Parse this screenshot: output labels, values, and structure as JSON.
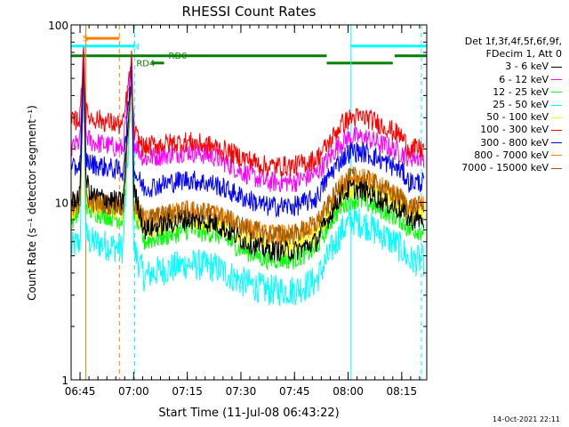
{
  "chart_data": {
    "type": "line",
    "title": "RHESSI Count Rates",
    "xlabel": "Start Time (11-Jul-08 06:43:22)",
    "ylabel": "Count Rate (s⁻¹ detector segment⁻¹)",
    "yscale": "log",
    "ylim": [
      1,
      100
    ],
    "xlim_minutes": [
      -2.5,
      97
    ],
    "x_ticks": [
      {
        "m": 0,
        "label": "06:45"
      },
      {
        "m": 15,
        "label": "07:00"
      },
      {
        "m": 30,
        "label": "07:15"
      },
      {
        "m": 45,
        "label": "07:30"
      },
      {
        "m": 60,
        "label": "07:45"
      },
      {
        "m": 75,
        "label": "08:00"
      },
      {
        "m": 90,
        "label": "08:15"
      }
    ],
    "y_ticks": [
      {
        "v": 1,
        "label": "1"
      },
      {
        "v": 10,
        "label": "10"
      },
      {
        "v": 100,
        "label": "100"
      }
    ],
    "time_minutes": [
      -2.5,
      0,
      1,
      1.6,
      3,
      12,
      14.5,
      15,
      18,
      20,
      30,
      38,
      45,
      52,
      60,
      66,
      70,
      73,
      76,
      80,
      85,
      90,
      92
    ],
    "series": [
      {
        "name": "3 - 6 keV",
        "color": "#000000",
        "values": [
          10,
          11,
          70,
          14,
          11,
          10,
          60,
          12,
          7,
          7.2,
          8,
          7.6,
          6.2,
          5.4,
          5.3,
          6,
          8.5,
          11,
          12,
          11.5,
          10,
          9,
          8
        ]
      },
      {
        "name": "6 - 12 keV",
        "color": "#ff00ff",
        "values": [
          20,
          22,
          72,
          24,
          22,
          20,
          62,
          22,
          17.5,
          18,
          19.5,
          18,
          15,
          13,
          13,
          14.5,
          18,
          22,
          23.5,
          23,
          21,
          19,
          18
        ]
      },
      {
        "name": "12 - 25 keV",
        "color": "#00ff00",
        "values": [
          8,
          9,
          60,
          10,
          9,
          8,
          50,
          9,
          6,
          6.2,
          7,
          6.7,
          5.5,
          4.8,
          4.8,
          5.5,
          7.8,
          9.5,
          10.5,
          10,
          9,
          8,
          7
        ]
      },
      {
        "name": "25 - 50 keV",
        "color": "#00ffff",
        "values": [
          5.5,
          6,
          50,
          6.5,
          6,
          5.5,
          45,
          5.5,
          3.8,
          4,
          4.5,
          4.3,
          3.6,
          3.2,
          3.2,
          3.6,
          5.2,
          6.8,
          8,
          7.5,
          6.5,
          5.5,
          4.7
        ]
      },
      {
        "name": "50 - 100 keV",
        "color": "#ffff00",
        "values": [
          8.5,
          9.5,
          62,
          10.5,
          9.5,
          9,
          52,
          9.5,
          7,
          7.2,
          8,
          7.6,
          6.4,
          5.7,
          5.7,
          6.5,
          8.6,
          11,
          12.2,
          11.8,
          10.6,
          9.5,
          8.5
        ]
      },
      {
        "name": "100 - 300 keV",
        "color": "#ff0000",
        "values": [
          28,
          30,
          75,
          32,
          30,
          27,
          65,
          25,
          20,
          21,
          22,
          20.5,
          18,
          16,
          16,
          17.5,
          22,
          27.5,
          30,
          30,
          27,
          23.5,
          20
        ]
      },
      {
        "name": "300 - 800 keV",
        "color": "#0000ff",
        "values": [
          15,
          16.5,
          70,
          17.5,
          16.5,
          15,
          58,
          15,
          12,
          12.3,
          13.5,
          12.6,
          10.8,
          9.5,
          9.5,
          10.5,
          14.5,
          17.5,
          19.5,
          19,
          17,
          15,
          13
        ]
      },
      {
        "name": "800 - 7000 keV",
        "color": "#ff8000",
        "values": [
          9,
          10,
          64,
          11,
          10,
          9.5,
          55,
          10,
          8,
          8.2,
          9,
          8.6,
          7.4,
          6.6,
          6.6,
          7.5,
          10,
          12.5,
          14,
          13.5,
          12,
          10.5,
          9.5
        ]
      },
      {
        "name": "7000 - 15000 keV",
        "color": "#a06000",
        "values": [
          9,
          10,
          60,
          11,
          10,
          9.5,
          52,
          10,
          8,
          8.2,
          9,
          8.6,
          7.4,
          6.6,
          6.6,
          7.5,
          10,
          12.5,
          14,
          13.5,
          12,
          10.5,
          9.5
        ]
      }
    ],
    "vertical_markers": [
      {
        "m": 1.6,
        "color": "#ff8000",
        "style": "solid"
      },
      {
        "m": 11,
        "color": "#ff8000",
        "style": "dashed"
      },
      {
        "m": 15.3,
        "color": "#00ffff",
        "style": "dashed"
      },
      {
        "m": 75.8,
        "color": "#00ffff",
        "style": "solid"
      },
      {
        "m": 95.5,
        "color": "#00ffff",
        "style": "dashed"
      }
    ],
    "flag_bars": [
      {
        "label": "S",
        "color": "#ff8000",
        "segments": [
          [
            1.6,
            11
          ]
        ],
        "y": 84,
        "label_at": 0
      },
      {
        "label": "N",
        "color": "#00ffff",
        "segments": [
          [
            -2.5,
            15.3
          ],
          [
            75.8,
            97
          ]
        ],
        "y": 76,
        "label_at": 14
      },
      {
        "label": "RD0",
        "color": "#008000",
        "segments": [
          [
            -2.5,
            69
          ],
          [
            88,
            97
          ]
        ],
        "y": 67,
        "label_at": 24
      },
      {
        "label": "RD4",
        "color": "#008000",
        "segments": [
          [
            20,
            23.5
          ],
          [
            69,
            87.5
          ]
        ],
        "y": 61,
        "label_at": 15
      }
    ],
    "legend": {
      "header": [
        "Det 1f,3f,4f,5f,6f,9f,",
        "FDecim 1, Att 0"
      ],
      "placement": "right"
    }
  },
  "footer": {
    "timestamp": "14-Oct-2021 22:11"
  }
}
